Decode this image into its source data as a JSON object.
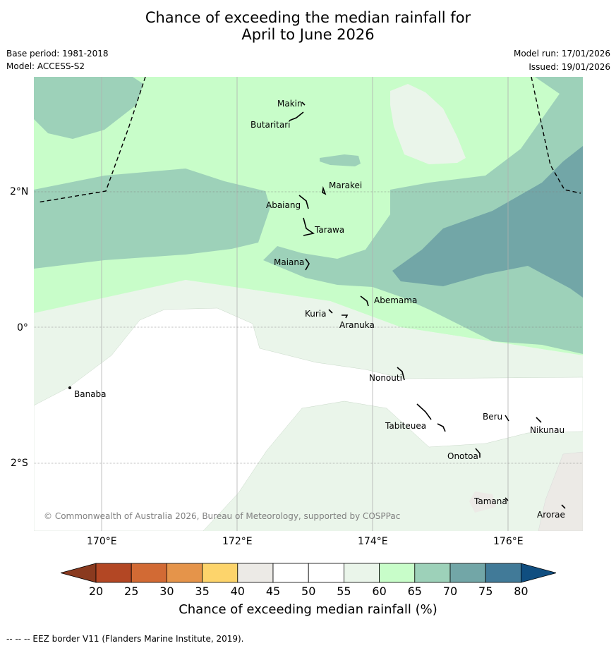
{
  "title": {
    "line1": "Chance of exceeding the median rainfall for",
    "line2": "April to June 2026"
  },
  "meta": {
    "base_period": "Base period: 1981-2018",
    "model": "Model: ACCESS-S2",
    "model_run": "Model run: 17/01/2026",
    "issued": "Issued: 19/01/2026"
  },
  "map": {
    "lon_labels": [
      "170°E",
      "172°E",
      "174°E",
      "176°E"
    ],
    "lat_labels": [
      "2°N",
      "0°",
      "2°S"
    ],
    "places": [
      "Makin",
      "Butaritari",
      "Marakei",
      "Abaiang",
      "Tarawa",
      "Maiana",
      "Abemama",
      "Kuria",
      "Aranuka",
      "Nonouti",
      "Banaba",
      "Beru",
      "Nikunau",
      "Tabiteuea",
      "Onotoa",
      "Tamana",
      "Arorae"
    ],
    "copyright": "© Commonwealth of Australia 2026, Bureau of Meteorology, supported by COSPPac"
  },
  "colorbar": {
    "ticks": [
      "20",
      "25",
      "30",
      "35",
      "40",
      "45",
      "50",
      "55",
      "60",
      "65",
      "70",
      "75",
      "80"
    ],
    "colors": [
      "#b34724",
      "#d26a34",
      "#e5944a",
      "#fdd46b",
      "#eceae6",
      "#ffffff",
      "#ffffff",
      "#eaf5ea",
      "#c8fdc9",
      "#9dd1b9",
      "#72a6a7",
      "#417a98"
    ],
    "low_color": "#8a3a1f",
    "high_color": "#104e80",
    "label": "Chance of exceeding median rainfall (%)"
  },
  "footnote": "--  --  -- EEZ border V11 (Flanders Marine Institute, 2019)."
}
